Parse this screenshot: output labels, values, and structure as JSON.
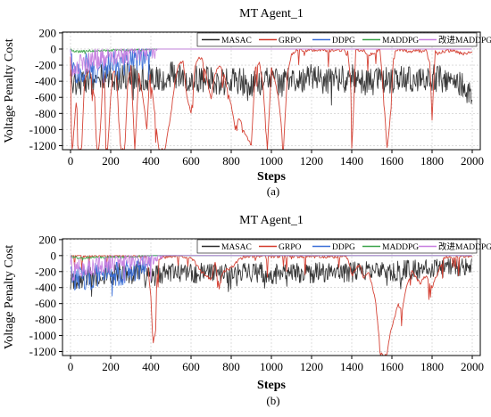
{
  "chart_data": [
    {
      "type": "line",
      "panel_label": "(a)",
      "title": "MT Agent_1",
      "xlabel": "Steps",
      "ylabel": "Voltage Penalty Cost",
      "xlim": [
        -40,
        2040
      ],
      "ylim": [
        -1250,
        210
      ],
      "xticks": [
        0,
        200,
        400,
        600,
        800,
        1000,
        1200,
        1400,
        1600,
        1800,
        2000
      ],
      "yticks": [
        200,
        0,
        -200,
        -400,
        -600,
        -800,
        -1000,
        -1200
      ],
      "grid": true,
      "legend_position": "top-right",
      "series": [
        {
          "name": "MASAC",
          "color": "#2b2b2b",
          "x": [
            0,
            50,
            100,
            150,
            200,
            250,
            300,
            350,
            400,
            450,
            500,
            550,
            600,
            650,
            700,
            750,
            800,
            850,
            900,
            950,
            1000,
            1050,
            1100,
            1150,
            1200,
            1250,
            1300,
            1350,
            1400,
            1450,
            1500,
            1550,
            1600,
            1650,
            1700,
            1750,
            1800,
            1850,
            1900,
            1950,
            2000
          ],
          "y": [
            -380,
            -420,
            -400,
            -360,
            -340,
            -380,
            -300,
            -360,
            -350,
            -420,
            -300,
            -380,
            -380,
            -370,
            -380,
            -420,
            -380,
            -400,
            -450,
            -400,
            -380,
            -430,
            -360,
            -380,
            -360,
            -380,
            -410,
            -380,
            -350,
            -430,
            -380,
            -380,
            -400,
            -360,
            -380,
            -400,
            -350,
            -380,
            -420,
            -460,
            -600
          ],
          "spread": 170,
          "min_y": -780
        },
        {
          "name": "GRPO",
          "color": "#d33a2c",
          "x": [
            0,
            5,
            10,
            20,
            30,
            40,
            55,
            70,
            95,
            120,
            130,
            140,
            150,
            160,
            170,
            175,
            185,
            200,
            215,
            230,
            250,
            270,
            285,
            300,
            320,
            340,
            360,
            380,
            395,
            415,
            440,
            470,
            500,
            520,
            540,
            560,
            580,
            600,
            620,
            640,
            660,
            680,
            700,
            720,
            740,
            760,
            780,
            800,
            820,
            840,
            860,
            880,
            900,
            920,
            940,
            960,
            980,
            1000,
            1020,
            1040,
            1060,
            1080,
            1100,
            1120,
            1140,
            1160,
            1180,
            1200,
            1220,
            1260,
            1300,
            1360,
            1380,
            1395,
            1400,
            1410,
            1420,
            1440,
            1460,
            1480,
            1520,
            1540,
            1560,
            1575,
            1590,
            1610,
            1640,
            1680,
            1720,
            1750,
            1770,
            1790,
            1800,
            1815,
            1830,
            1860,
            1900,
            1950,
            2000
          ],
          "y": [
            -100,
            -1200,
            -1250,
            -900,
            -600,
            -1250,
            -1250,
            -380,
            -250,
            -600,
            -1250,
            -1250,
            -950,
            -400,
            -300,
            -1250,
            -1250,
            -600,
            -250,
            -380,
            -1250,
            -1250,
            -400,
            -220,
            -1250,
            -300,
            -600,
            -1000,
            -300,
            -700,
            -1250,
            -1250,
            -800,
            -400,
            -180,
            -150,
            -600,
            -800,
            -200,
            -120,
            -120,
            -400,
            -600,
            -300,
            -200,
            -250,
            -500,
            -700,
            -1000,
            -850,
            -1000,
            -1100,
            -1200,
            -250,
            -150,
            -500,
            -1250,
            -250,
            -400,
            -700,
            -1250,
            -300,
            -80,
            -20,
            -10,
            -30,
            -10,
            -20,
            -10,
            -20,
            -20,
            -10,
            -30,
            -400,
            -1250,
            -700,
            -20,
            -10,
            -10,
            -80,
            -30,
            -10,
            -600,
            -1250,
            -900,
            -20,
            -10,
            -30,
            -20,
            -30,
            -10,
            -200,
            -900,
            -30,
            -50,
            -30,
            -20,
            -60,
            -40
          ],
          "spread": 40,
          "min_y": -1250
        },
        {
          "name": "DDPG",
          "color": "#3a6fd8",
          "x": [
            0,
            5,
            10,
            20,
            40,
            80,
            120,
            160,
            200,
            240,
            280,
            320,
            360,
            380,
            395,
            400,
            2000
          ],
          "y": [
            0,
            -150,
            -250,
            -350,
            -300,
            -200,
            -280,
            -250,
            -180,
            -220,
            -150,
            -120,
            -80,
            -40,
            -10,
            0,
            0
          ],
          "spread": 170,
          "min_y": -420
        },
        {
          "name": "MADDPG",
          "color": "#3aa34a",
          "x": [
            0,
            10,
            30,
            60,
            100,
            150,
            200,
            250,
            300,
            350,
            400,
            2000
          ],
          "y": [
            0,
            -20,
            -30,
            -30,
            -20,
            -25,
            -15,
            -20,
            -10,
            -10,
            0,
            0
          ],
          "spread": 15,
          "min_y": -60
        },
        {
          "name": "改进MADDPG",
          "color": "#c77fe0",
          "x": [
            0,
            10,
            30,
            60,
            100,
            140,
            180,
            220,
            260,
            300,
            350,
            400,
            430,
            2000
          ],
          "y": [
            0,
            -250,
            -200,
            -180,
            -150,
            -120,
            -100,
            -80,
            -60,
            -30,
            -15,
            -5,
            0,
            0
          ],
          "spread": 150,
          "min_y": -420
        }
      ]
    },
    {
      "type": "line",
      "panel_label": "(b)",
      "title": "MT Agent_1",
      "xlabel": "Steps",
      "ylabel": "Voltage Penalty Cost",
      "xlim": [
        -40,
        2040
      ],
      "ylim": [
        -1250,
        210
      ],
      "xticks": [
        0,
        200,
        400,
        600,
        800,
        1000,
        1200,
        1400,
        1600,
        1800,
        2000
      ],
      "yticks": [
        200,
        0,
        -200,
        -400,
        -600,
        -800,
        -1000,
        -1200
      ],
      "grid": true,
      "legend_position": "top-right",
      "series": [
        {
          "name": "MASAC",
          "color": "#2b2b2b",
          "x": [
            0,
            50,
            100,
            150,
            200,
            250,
            300,
            350,
            400,
            450,
            500,
            550,
            600,
            650,
            700,
            750,
            800,
            850,
            900,
            950,
            1000,
            1050,
            1100,
            1150,
            1200,
            1250,
            1300,
            1350,
            1400,
            1450,
            1500,
            1550,
            1600,
            1650,
            1700,
            1750,
            1800,
            1850,
            1900,
            1950,
            2000
          ],
          "y": [
            -300,
            -280,
            -260,
            -240,
            -250,
            -220,
            -240,
            -200,
            -260,
            -230,
            -220,
            -200,
            -240,
            -210,
            -230,
            -220,
            -240,
            -210,
            -220,
            -200,
            -250,
            -210,
            -200,
            -230,
            -220,
            -210,
            -200,
            -230,
            -210,
            -190,
            -200,
            -180,
            -200,
            -190,
            -180,
            -170,
            -160,
            -150,
            -140,
            -130,
            -110
          ],
          "spread": 130,
          "min_y": -680
        },
        {
          "name": "GRPO",
          "color": "#d33a2c",
          "x": [
            0,
            200,
            380,
            400,
            410,
            420,
            430,
            440,
            460,
            500,
            600,
            650,
            700,
            720,
            740,
            760,
            800,
            850,
            900,
            1000,
            1200,
            1380,
            1400,
            1440,
            1460,
            1480,
            1500,
            1520,
            1535,
            1550,
            1560,
            1575,
            1590,
            1610,
            1630,
            1650,
            1670,
            1700,
            1740,
            1770,
            1800,
            1830,
            1860,
            2000
          ],
          "y": [
            0,
            0,
            -10,
            -500,
            -1100,
            -1000,
            -300,
            -50,
            -20,
            -10,
            -20,
            -200,
            -300,
            -80,
            -400,
            -200,
            -150,
            -30,
            -10,
            -10,
            -10,
            -20,
            -250,
            -100,
            -300,
            -200,
            -350,
            -600,
            -1000,
            -1250,
            -1250,
            -1250,
            -1000,
            -800,
            -600,
            -700,
            -400,
            -200,
            -350,
            -250,
            -400,
            -200,
            -30,
            0
          ],
          "spread": 40,
          "min_y": -1250
        },
        {
          "name": "DDPG",
          "color": "#3a6fd8",
          "x": [
            0,
            5,
            10,
            30,
            60,
            100,
            150,
            200,
            250,
            300,
            350,
            380,
            400,
            2000
          ],
          "y": [
            0,
            -100,
            -300,
            -250,
            -300,
            -280,
            -230,
            -200,
            -250,
            -180,
            -150,
            -120,
            0,
            0
          ],
          "spread": 160,
          "min_y": -620
        },
        {
          "name": "MADDPG",
          "color": "#3aa34a",
          "x": [
            0,
            10,
            50,
            100,
            200,
            300,
            400,
            2000
          ],
          "y": [
            0,
            -20,
            -30,
            -20,
            -20,
            -15,
            0,
            0
          ],
          "spread": 15,
          "min_y": -60
        },
        {
          "name": "改进MADDPG",
          "color": "#c77fe0",
          "x": [
            0,
            10,
            30,
            60,
            100,
            150,
            200,
            260,
            320,
            380,
            430,
            460,
            2000
          ],
          "y": [
            0,
            -200,
            -180,
            -150,
            -130,
            -110,
            -90,
            -60,
            -40,
            -20,
            -10,
            0,
            0
          ],
          "spread": 130,
          "min_y": -380
        }
      ]
    }
  ]
}
